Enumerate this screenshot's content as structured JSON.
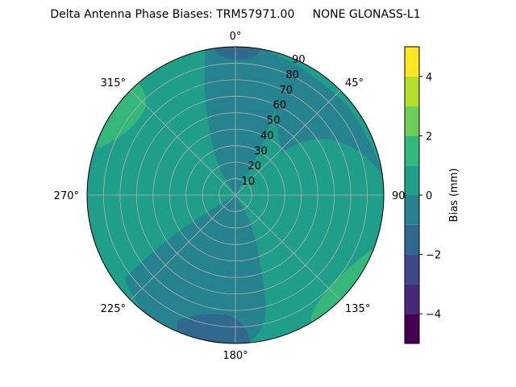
{
  "chart_data": {
    "type": "heatmap",
    "projection": "polar",
    "title": "Delta Antenna Phase Biases: TRM57971.00     NONE GLONASS-L1",
    "theta_zero": "north",
    "theta_direction": "clockwise",
    "angle_tick_labels": [
      "0°",
      "45°",
      "90",
      "135°",
      "180°",
      "225°",
      "270°",
      "315°"
    ],
    "radial_tick_labels": [
      "10",
      "20",
      "30",
      "40",
      "50",
      "60",
      "70",
      "80",
      "90"
    ],
    "radial_range": [
      0,
      90
    ],
    "grid": true,
    "colorbar": {
      "label": "Bias (mm)",
      "range": [
        -5,
        5
      ],
      "tick_labels": [
        "−4",
        "−2",
        "0",
        "2",
        "4"
      ],
      "tick_values": [
        -4,
        -2,
        0,
        2,
        4
      ],
      "levels": [
        -5,
        -4.375,
        -3.75,
        -3.125,
        -2.5,
        -1.875,
        -1.25,
        -0.625,
        0,
        0.625,
        1.25,
        1.875,
        2.5,
        3.125,
        3.75,
        4.375,
        5
      ],
      "colors": [
        "#440154",
        "#482878",
        "#3e4989",
        "#31688e",
        "#26828e",
        "#1f9e89",
        "#35b779",
        "#6ece58",
        "#b5de2b",
        "#fde725"
      ]
    },
    "regions": [
      {
        "level": "0 to 0.625",
        "color": "#1f9e89",
        "area": "background"
      },
      {
        "level": "-0.625 to 0",
        "color": "#26828e",
        "area": "north lobe along 0° from center to edge"
      },
      {
        "level": "-0.625 to 0",
        "color": "#26828e",
        "area": "south-west band from center through 225° to 180° edge"
      },
      {
        "level": "-1.25 to -0.625",
        "color": "#31688e",
        "area": "north edge near 0° and south edge near 190°"
      },
      {
        "level": "1.25 to 1.875",
        "color": "#35b779",
        "area": "north-west edge near 315°"
      },
      {
        "level": "1.25 to 1.875",
        "color": "#35b779",
        "area": "south-east edge near 120°–150°"
      },
      {
        "level": "-0.625 to 0",
        "color": "#26828e",
        "area": "north-east edge near 45°–80°"
      }
    ]
  }
}
